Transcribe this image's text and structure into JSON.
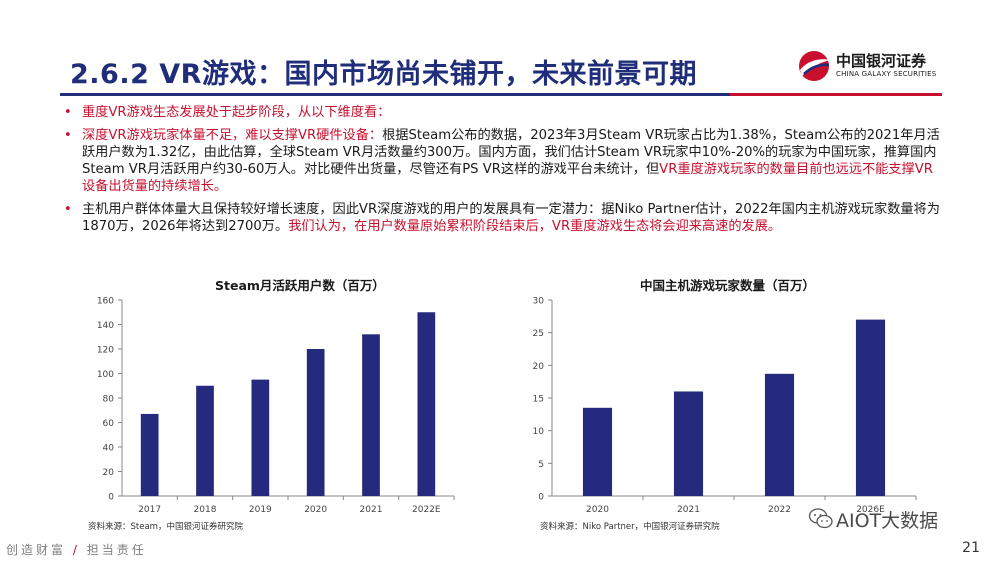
{
  "slide": {
    "title": "2.6.2 VR游戏：国内市场尚未铺开，未来前景可期",
    "page_number": "21",
    "footer_left_a": "创造财富",
    "footer_slash": "/",
    "footer_left_b": "担当责任",
    "watermark": "AIOT大数据"
  },
  "logo": {
    "cn": "中国银河证券",
    "en": "CHINA GALAXY SECURITIES",
    "colors": {
      "red": "#c8102e",
      "blue": "#1f2d7a"
    }
  },
  "bullets": [
    {
      "segments": [
        {
          "text": "重度VR游戏生态发展处于起步阶段，从以下维度看：",
          "color": "red"
        }
      ]
    },
    {
      "segments": [
        {
          "text": "深度VR游戏玩家体量不足，难以支撑VR硬件设备：",
          "color": "red"
        },
        {
          "text": "根据Steam公布的数据，2023年3月Steam  VR玩家占比为1.38%，Steam公布的2021年月活跃用户数为1.32亿，由此估算，全球Steam  VR月活数量约300万。国内方面，我们估计Steam  VR玩家中10%-20%的玩家为中国玩家，推算国内Steam  VR月活跃用户约30-60万人。对比硬件出货量，尽管还有PS  VR这样的游戏平台未统计，但",
          "color": "normal"
        },
        {
          "text": "VR重度游戏玩家的数量目前也远远不能支撑VR设备出货量的持续增长。",
          "color": "red"
        }
      ]
    },
    {
      "segments": [
        {
          "text": "主机用户群体体量大且保持较好增长速度，因此VR深度游戏的用户的发展具有一定潜力：据Niko Partner估计，2022年国内主机游戏玩家数量将为1870万，2026年将达到2700万。",
          "color": "normal"
        },
        {
          "text": "我们认为，在用户数量原始累积阶段结束后，VR重度游戏生态将会迎来高速的发展。",
          "color": "red"
        }
      ]
    }
  ],
  "chart_data": [
    {
      "type": "bar",
      "title": "Steam月活跃用户数（百万）",
      "categories": [
        "2017",
        "2018",
        "2019",
        "2020",
        "2021",
        "2022E"
      ],
      "values": [
        67,
        90,
        95,
        120,
        132,
        150
      ],
      "ylim": [
        0,
        160
      ],
      "yticks": [
        0,
        20,
        40,
        60,
        80,
        100,
        120,
        140,
        160
      ],
      "grid": false,
      "bar_color": "#262a7e",
      "source": "资料来源：Steam，中国银河证券研究院"
    },
    {
      "type": "bar",
      "title": "中国主机游戏玩家数量（百万）",
      "categories": [
        "2020",
        "2021",
        "2022",
        "2026E"
      ],
      "values": [
        13.5,
        16,
        18.7,
        27
      ],
      "ylim": [
        0,
        30
      ],
      "yticks": [
        0,
        5,
        10,
        15,
        20,
        25,
        30
      ],
      "grid": false,
      "bar_color": "#262a7e",
      "source": "资料来源：Niko Partner，中国银河证券研究院"
    }
  ]
}
